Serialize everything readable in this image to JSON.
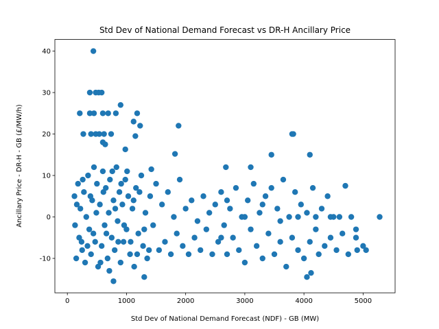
{
  "chart_data": {
    "type": "scatter",
    "title": "Std Dev of National Demand Forecast vs DR-H Ancillary Price",
    "x_label": "Std Dev of National Demand Forecast (NDF) - GB (MW)",
    "y_label": "Ancillary Price - DR-H - GB (£/MW/h)",
    "color": "#1f77b4",
    "xlim": [
      -211,
      5541
    ],
    "xticks": [
      0,
      1000,
      2000,
      3000,
      4000,
      5000
    ],
    "ylim": [
      -18.3,
      42.8
    ],
    "yticks": [
      -10,
      0,
      10,
      20,
      30,
      40
    ],
    "x": [
      440,
      380,
      480,
      530,
      580,
      900,
      210,
      380,
      450,
      600,
      690,
      820,
      1180,
      1880,
      1230,
      1120,
      270,
      400,
      480,
      540,
      620,
      740,
      1150,
      3800,
      3820,
      600,
      640,
      980,
      1820,
      4100,
      3450,
      2680,
      3100,
      5280,
      5050,
      4900,
      4880,
      4880,
      5000,
      780,
      1300,
      4050,
      4120,
      120,
      150,
      180,
      200,
      220,
      250,
      280,
      300,
      320,
      350,
      370,
      400,
      420,
      450,
      470,
      500,
      520,
      550,
      580,
      600,
      630,
      650,
      680,
      700,
      720,
      750,
      780,
      800,
      830,
      850,
      880,
      900,
      930,
      950,
      980,
      1000,
      1030,
      1060,
      1100,
      1130,
      1160,
      1200,
      1250,
      1280,
      1320,
      1350,
      1400,
      1450,
      1500,
      1550,
      1600,
      1650,
      1700,
      1750,
      1800,
      1850,
      1900,
      1950,
      2000,
      2050,
      2100,
      2150,
      2200,
      2250,
      2300,
      2350,
      2400,
      2450,
      2500,
      2550,
      2600,
      2650,
      2700,
      2750,
      2800,
      2850,
      2900,
      2950,
      3000,
      3050,
      3100,
      3150,
      3200,
      3250,
      3300,
      3350,
      3400,
      3450,
      3500,
      3550,
      3600,
      3650,
      3700,
      3750,
      3800,
      3850,
      3900,
      3950,
      4000,
      4050,
      4100,
      4150,
      4200,
      4250,
      4300,
      4350,
      4400,
      4450,
      4500,
      4550,
      4600,
      4650,
      4700,
      4750,
      4800,
      130,
      160,
      240,
      260,
      340,
      390,
      440,
      490,
      560,
      610,
      660,
      710,
      760,
      810,
      860,
      910,
      960,
      1010,
      1070,
      1120,
      1180,
      1220,
      1300,
      1380,
      1420,
      2600,
      2700,
      3000,
      3300,
      3600,
      3900,
      4200,
      4450
    ],
    "values": [
      40,
      30,
      30,
      30,
      30,
      27,
      25,
      25,
      25,
      25,
      25,
      25,
      25,
      22,
      22,
      23,
      20,
      20,
      20,
      20,
      20,
      20,
      19.5,
      20,
      20,
      18,
      17.5,
      16.3,
      15.2,
      15,
      15,
      12,
      12,
      0,
      -8,
      -8,
      -3,
      -5,
      -7,
      -15.5,
      -14.5,
      -14.5,
      -13.5,
      5,
      -10,
      8,
      -5,
      2,
      -8,
      6,
      -11,
      0,
      10,
      -3,
      -9,
      4,
      12,
      -6,
      8,
      -12,
      3,
      -7,
      11,
      -2,
      7,
      -10,
      1,
      9,
      -5,
      4,
      -8,
      12,
      -1,
      6,
      -11,
      3,
      -6,
      9,
      -3,
      5,
      -9,
      2,
      -12,
      7,
      -4,
      10,
      -7,
      1,
      -10,
      5,
      -2,
      8,
      -8,
      3,
      -6,
      6,
      -9,
      0,
      -4,
      9,
      -7,
      2,
      -9,
      4,
      -5,
      -1,
      -8,
      5,
      -3,
      1,
      -9,
      3,
      -6,
      6,
      -2,
      -9,
      2,
      -5,
      7,
      -8,
      0,
      -11,
      4,
      -3,
      8,
      -7,
      1,
      -10,
      5,
      -4,
      7,
      -9,
      2,
      -6,
      9,
      -12,
      0,
      -5,
      6,
      -8,
      3,
      -10,
      1,
      -6,
      7,
      -3,
      -9,
      2,
      -7,
      5,
      -5,
      0,
      -8,
      0,
      -4,
      7.5,
      -9,
      0,
      -2,
      3,
      -6,
      9,
      -7,
      5,
      -4,
      1,
      -11,
      6,
      -4,
      -13,
      11,
      2,
      -6,
      8,
      -2,
      11,
      -6,
      4,
      -9,
      6,
      -3,
      -8,
      11.5,
      -5,
      4,
      0,
      3,
      -1,
      0,
      0,
      0
    ]
  }
}
